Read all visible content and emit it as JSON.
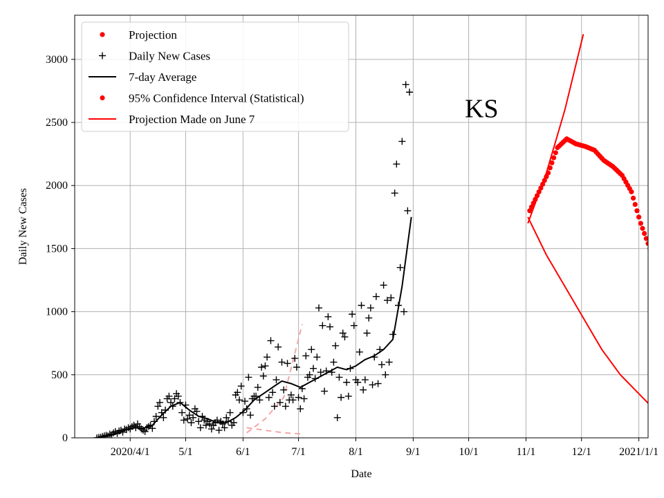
{
  "chart_data": {
    "type": "line",
    "xlabel": "Date",
    "ylabel": "Daily New Cases",
    "annotation": "KS",
    "x_start_date": "2020-03-07",
    "xlim_days": [
      -5,
      305
    ],
    "ylim": [
      0,
      3350
    ],
    "x_ticks": [
      {
        "label": "2020/4/1",
        "day": 25
      },
      {
        "label": "5/1",
        "day": 55
      },
      {
        "label": "6/1",
        "day": 86
      },
      {
        "label": "7/1",
        "day": 116
      },
      {
        "label": "8/1",
        "day": 147
      },
      {
        "label": "9/1",
        "day": 178
      },
      {
        "label": "10/1",
        "day": 208
      },
      {
        "label": "11/1",
        "day": 239
      },
      {
        "label": "12/1",
        "day": 269
      },
      {
        "label": "2021/1/1",
        "day": 300
      }
    ],
    "y_ticks": [
      0,
      500,
      1000,
      1500,
      2000,
      2500,
      3000
    ],
    "grid": true,
    "legend_position": "top-left",
    "legend": [
      {
        "key": "projection",
        "label": "Projection",
        "marker": "dot",
        "color": "#ff0000"
      },
      {
        "key": "daily",
        "label": "Daily New Cases",
        "marker": "plus",
        "color": "#000000"
      },
      {
        "key": "avg",
        "label": "7-day Average",
        "marker": "line",
        "color": "#000000"
      },
      {
        "key": "ci",
        "label": "95% Confidence Interval (Statistical)",
        "marker": "dot",
        "color": "#ff0000"
      },
      {
        "key": "june",
        "label": "Projection Made on June 7",
        "marker": "line",
        "color": "#ff0000"
      }
    ],
    "series": {
      "daily_new_cases": [
        [
          0,
          0
        ],
        [
          1,
          3
        ],
        [
          2,
          5
        ],
        [
          3,
          10
        ],
        [
          4,
          15
        ],
        [
          5,
          20
        ],
        [
          6,
          15
        ],
        [
          7,
          30
        ],
        [
          8,
          25
        ],
        [
          9,
          40
        ],
        [
          10,
          50
        ],
        [
          11,
          35
        ],
        [
          12,
          55
        ],
        [
          13,
          60
        ],
        [
          14,
          45
        ],
        [
          15,
          70
        ],
        [
          16,
          65
        ],
        [
          17,
          80
        ],
        [
          18,
          70
        ],
        [
          19,
          90
        ],
        [
          20,
          100
        ],
        [
          21,
          80
        ],
        [
          22,
          110
        ],
        [
          23,
          90
        ],
        [
          24,
          70
        ],
        [
          25,
          60
        ],
        [
          26,
          50
        ],
        [
          27,
          80
        ],
        [
          28,
          90
        ],
        [
          29,
          100
        ],
        [
          30,
          75
        ],
        [
          31,
          130
        ],
        [
          32,
          170
        ],
        [
          33,
          250
        ],
        [
          34,
          280
        ],
        [
          35,
          200
        ],
        [
          36,
          160
        ],
        [
          37,
          220
        ],
        [
          38,
          310
        ],
        [
          39,
          330
        ],
        [
          40,
          280
        ],
        [
          41,
          250
        ],
        [
          42,
          310
        ],
        [
          43,
          350
        ],
        [
          44,
          330
        ],
        [
          45,
          280
        ],
        [
          46,
          200
        ],
        [
          47,
          140
        ],
        [
          48,
          260
        ],
        [
          49,
          150
        ],
        [
          50,
          180
        ],
        [
          51,
          120
        ],
        [
          52,
          160
        ],
        [
          53,
          230
        ],
        [
          54,
          210
        ],
        [
          55,
          130
        ],
        [
          56,
          80
        ],
        [
          57,
          170
        ],
        [
          58,
          140
        ],
        [
          59,
          100
        ],
        [
          60,
          130
        ],
        [
          61,
          110
        ],
        [
          62,
          70
        ],
        [
          63,
          100
        ],
        [
          64,
          120
        ],
        [
          65,
          140
        ],
        [
          66,
          60
        ],
        [
          67,
          130
        ],
        [
          68,
          110
        ],
        [
          69,
          80
        ],
        [
          70,
          160
        ],
        [
          71,
          130
        ],
        [
          72,
          200
        ],
        [
          73,
          100
        ],
        [
          74,
          120
        ],
        [
          75,
          340
        ],
        [
          76,
          360
        ],
        [
          77,
          300
        ],
        [
          78,
          410
        ],
        [
          79,
          200
        ],
        [
          80,
          290
        ],
        [
          81,
          230
        ],
        [
          82,
          480
        ],
        [
          83,
          180
        ],
        [
          84,
          310
        ],
        [
          85,
          330
        ],
        [
          86,
          330
        ],
        [
          87,
          400
        ],
        [
          88,
          300
        ],
        [
          89,
          560
        ],
        [
          90,
          490
        ],
        [
          91,
          570
        ],
        [
          92,
          640
        ],
        [
          93,
          320
        ],
        [
          94,
          770
        ],
        [
          95,
          360
        ],
        [
          96,
          250
        ],
        [
          97,
          460
        ],
        [
          98,
          720
        ],
        [
          99,
          280
        ],
        [
          100,
          600
        ],
        [
          101,
          380
        ],
        [
          102,
          250
        ],
        [
          103,
          590
        ],
        [
          104,
          300
        ],
        [
          105,
          340
        ],
        [
          106,
          300
        ],
        [
          107,
          630
        ],
        [
          108,
          560
        ],
        [
          109,
          320
        ],
        [
          110,
          230
        ],
        [
          111,
          390
        ],
        [
          112,
          310
        ],
        [
          113,
          650
        ],
        [
          114,
          480
        ],
        [
          115,
          500
        ],
        [
          116,
          700
        ],
        [
          117,
          550
        ],
        [
          118,
          470
        ],
        [
          119,
          640
        ],
        [
          120,
          1030
        ],
        [
          121,
          520
        ],
        [
          122,
          890
        ],
        [
          123,
          370
        ],
        [
          124,
          530
        ],
        [
          125,
          960
        ],
        [
          126,
          880
        ],
        [
          127,
          520
        ],
        [
          128,
          600
        ],
        [
          129,
          730
        ],
        [
          130,
          160
        ],
        [
          131,
          480
        ],
        [
          132,
          320
        ],
        [
          133,
          830
        ],
        [
          134,
          800
        ],
        [
          135,
          440
        ],
        [
          136,
          330
        ],
        [
          137,
          550
        ],
        [
          138,
          980
        ],
        [
          139,
          890
        ],
        [
          140,
          460
        ],
        [
          141,
          440
        ],
        [
          142,
          680
        ],
        [
          143,
          1050
        ],
        [
          144,
          380
        ],
        [
          145,
          460
        ],
        [
          146,
          830
        ],
        [
          147,
          950
        ],
        [
          148,
          1030
        ],
        [
          149,
          420
        ],
        [
          150,
          640
        ],
        [
          151,
          1120
        ],
        [
          152,
          430
        ],
        [
          153,
          700
        ],
        [
          154,
          580
        ],
        [
          155,
          1210
        ],
        [
          156,
          500
        ],
        [
          157,
          1090
        ],
        [
          158,
          600
        ],
        [
          159,
          1110
        ],
        [
          160,
          820
        ],
        [
          161,
          1940
        ],
        [
          162,
          2170
        ],
        [
          163,
          1050
        ],
        [
          164,
          1350
        ],
        [
          165,
          2350
        ],
        [
          166,
          1000
        ],
        [
          167,
          2800
        ],
        [
          168,
          1800
        ],
        [
          169,
          2740
        ]
      ],
      "avg_7day": [
        [
          0,
          0
        ],
        [
          5,
          10
        ],
        [
          10,
          30
        ],
        [
          15,
          60
        ],
        [
          20,
          80
        ],
        [
          25,
          75
        ],
        [
          30,
          100
        ],
        [
          35,
          180
        ],
        [
          40,
          250
        ],
        [
          45,
          280
        ],
        [
          50,
          220
        ],
        [
          55,
          170
        ],
        [
          60,
          150
        ],
        [
          65,
          120
        ],
        [
          70,
          120
        ],
        [
          75,
          160
        ],
        [
          80,
          220
        ],
        [
          85,
          300
        ],
        [
          90,
          350
        ],
        [
          95,
          400
        ],
        [
          100,
          450
        ],
        [
          105,
          430
        ],
        [
          110,
          400
        ],
        [
          115,
          440
        ],
        [
          120,
          480
        ],
        [
          125,
          520
        ],
        [
          130,
          560
        ],
        [
          135,
          540
        ],
        [
          140,
          570
        ],
        [
          145,
          620
        ],
        [
          150,
          650
        ],
        [
          155,
          700
        ],
        [
          160,
          780
        ],
        [
          165,
          1200
        ],
        [
          170,
          1750
        ]
      ],
      "projection": [
        [
          0,
          1800
        ],
        [
          5,
          1950
        ],
        [
          10,
          2100
        ],
        [
          15,
          2300
        ],
        [
          20,
          2370
        ],
        [
          25,
          2330
        ],
        [
          30,
          2310
        ],
        [
          35,
          2280
        ],
        [
          40,
          2200
        ],
        [
          45,
          2150
        ],
        [
          50,
          2080
        ],
        [
          55,
          1950
        ],
        [
          60,
          1700
        ],
        [
          65,
          1500
        ],
        [
          70,
          1350
        ]
      ],
      "june_projection": [
        [
          0,
          1750
        ],
        [
          10,
          1450
        ],
        [
          20,
          1200
        ],
        [
          30,
          950
        ],
        [
          40,
          700
        ],
        [
          50,
          500
        ],
        [
          60,
          350
        ],
        [
          70,
          200
        ],
        [
          80,
          100
        ]
      ],
      "june_upper": [
        [
          0,
          1700
        ],
        [
          10,
          2100
        ],
        [
          20,
          2600
        ],
        [
          30,
          3200
        ]
      ],
      "ci_early_upper": [
        [
          0,
          40
        ],
        [
          10,
          150
        ],
        [
          20,
          320
        ],
        [
          30,
          900
        ]
      ],
      "ci_early_lower": [
        [
          0,
          80
        ],
        [
          10,
          60
        ],
        [
          20,
          40
        ],
        [
          30,
          30
        ]
      ]
    }
  }
}
